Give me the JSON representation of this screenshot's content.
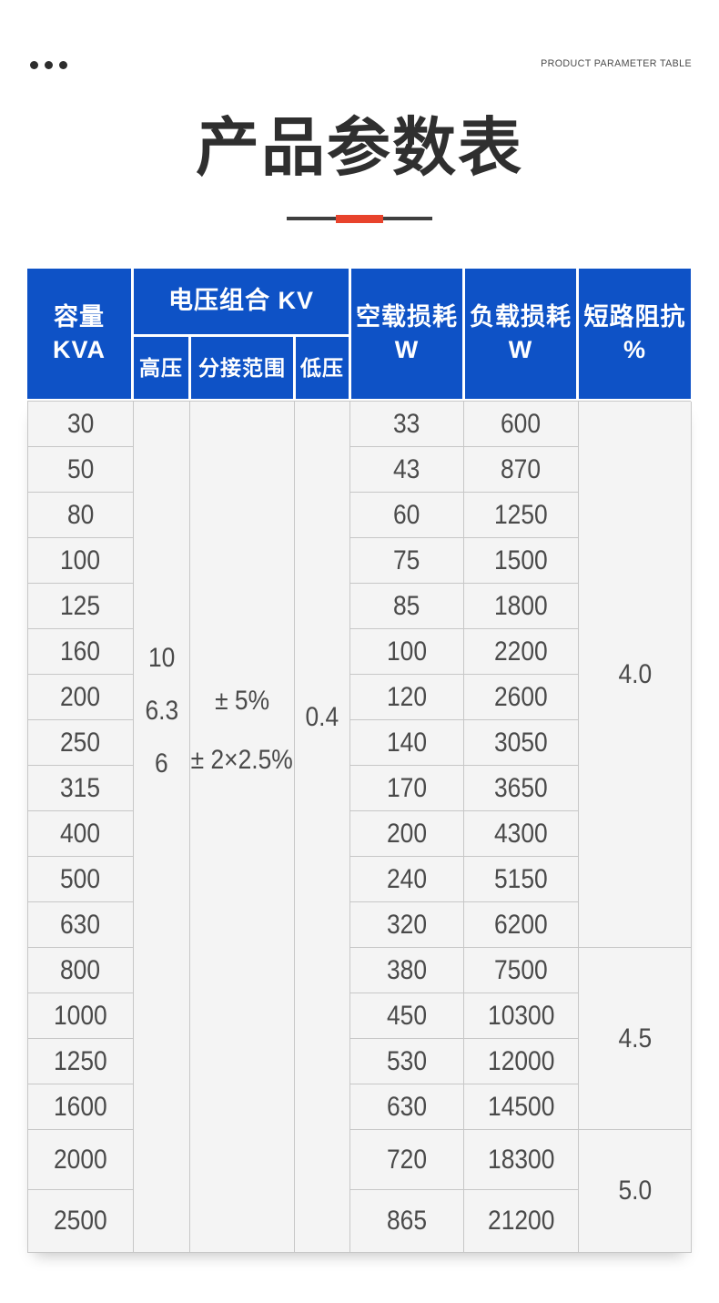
{
  "page": {
    "top_right_label": "PRODUCT PARAMETER TABLE",
    "title": "产品参数表"
  },
  "table": {
    "header": {
      "capacity_line1": "容量",
      "capacity_line2": "KVA",
      "voltage_group": "电压组合 KV",
      "high_voltage": "高压",
      "tap_range": "分接范围",
      "low_voltage": "低压",
      "no_load_loss_line1": "空载损耗",
      "no_load_loss_line2": "W",
      "load_loss_line1": "负载损耗",
      "load_loss_line2": "W",
      "impedance_line1": "短路阻抗",
      "impedance_line2": "%"
    },
    "merged": {
      "high_voltage_values": [
        "10",
        "6.3",
        "6"
      ],
      "tap_range_values": [
        "± 5%",
        "± 2×2.5%"
      ],
      "low_voltage_value": "0.4",
      "impedance_groups": [
        {
          "value": "4.0",
          "rows": "30–630"
        },
        {
          "value": "4.5",
          "rows": "800–1600"
        },
        {
          "value": "5.0",
          "rows": "2000–2500"
        }
      ]
    },
    "rows": [
      {
        "kva": "30",
        "no_load": "33",
        "load": "600"
      },
      {
        "kva": "50",
        "no_load": "43",
        "load": "870"
      },
      {
        "kva": "80",
        "no_load": "60",
        "load": "1250"
      },
      {
        "kva": "100",
        "no_load": "75",
        "load": "1500"
      },
      {
        "kva": "125",
        "no_load": "85",
        "load": "1800"
      },
      {
        "kva": "160",
        "no_load": "100",
        "load": "2200"
      },
      {
        "kva": "200",
        "no_load": "120",
        "load": "2600"
      },
      {
        "kva": "250",
        "no_load": "140",
        "load": "3050"
      },
      {
        "kva": "315",
        "no_load": "170",
        "load": "3650"
      },
      {
        "kva": "400",
        "no_load": "200",
        "load": "4300"
      },
      {
        "kva": "500",
        "no_load": "240",
        "load": "5150"
      },
      {
        "kva": "630",
        "no_load": "320",
        "load": "6200"
      },
      {
        "kva": "800",
        "no_load": "380",
        "load": "7500"
      },
      {
        "kva": "1000",
        "no_load": "450",
        "load": "10300"
      },
      {
        "kva": "1250",
        "no_load": "530",
        "load": "12000"
      },
      {
        "kva": "1600",
        "no_load": "630",
        "load": "14500"
      },
      {
        "kva": "2000",
        "no_load": "720",
        "load": "18300"
      },
      {
        "kva": "2500",
        "no_load": "865",
        "load": "21200"
      }
    ]
  },
  "colors": {
    "header_blue": "#0E52C6",
    "accent_red": "#E8432C",
    "body_bg": "#F4F4F4",
    "grid_line": "#C7C7C7",
    "text_dark": "#4A4A4A",
    "title_color": "#2F2F2F"
  }
}
